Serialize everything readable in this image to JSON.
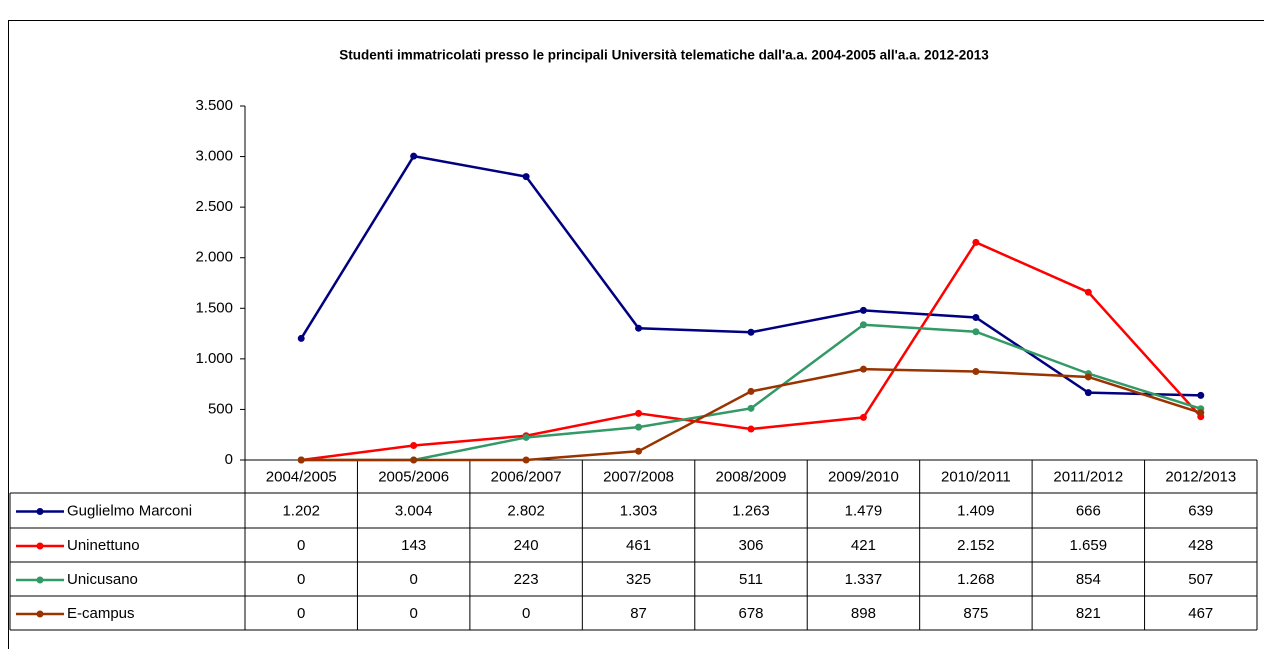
{
  "chart_data": {
    "type": "line",
    "title": "Studenti immatricolati presso le principali Università telematiche dall'a.a. 2004-2005 all'a.a. 2012-2013",
    "categories": [
      "2004/2005",
      "2005/2006",
      "2006/2007",
      "2007/2008",
      "2008/2009",
      "2009/2010",
      "2010/2011",
      "2011/2012",
      "2012/2013"
    ],
    "series": [
      {
        "name": "Guglielmo Marconi",
        "color": "#000080",
        "values": [
          1202,
          3004,
          2802,
          1303,
          1263,
          1479,
          1409,
          666,
          639
        ],
        "value_labels": [
          "1.202",
          "3.004",
          "2.802",
          "1.303",
          "1.263",
          "1.479",
          "1.409",
          "666",
          "639"
        ]
      },
      {
        "name": "Uninettuno",
        "color": "#ff0000",
        "values": [
          0,
          143,
          240,
          461,
          306,
          421,
          2152,
          1659,
          428
        ],
        "value_labels": [
          "0",
          "143",
          "240",
          "461",
          "306",
          "421",
          "2.152",
          "1.659",
          "428"
        ]
      },
      {
        "name": "Unicusano",
        "color": "#339966",
        "values": [
          0,
          0,
          223,
          325,
          511,
          1337,
          1268,
          854,
          507
        ],
        "value_labels": [
          "0",
          "0",
          "223",
          "325",
          "511",
          "1.337",
          "1.268",
          "854",
          "507"
        ]
      },
      {
        "name": "E-campus",
        "color": "#993300",
        "values": [
          0,
          0,
          0,
          87,
          678,
          898,
          875,
          821,
          467
        ],
        "value_labels": [
          "0",
          "0",
          "0",
          "87",
          "678",
          "898",
          "875",
          "821",
          "467"
        ]
      }
    ],
    "ylim": [
      0,
      3500
    ],
    "yticks": [
      0,
      500,
      {
        "value": 1000,
        "label": "1.000"
      },
      {
        "value": 1500,
        "label": "1.500"
      },
      {
        "value": 2000,
        "label": "2.000"
      },
      {
        "value": 2500,
        "label": "2.500"
      },
      {
        "value": 3000,
        "label": "3.000"
      },
      {
        "value": 3500,
        "label": "3.500"
      }
    ],
    "grid": false
  }
}
